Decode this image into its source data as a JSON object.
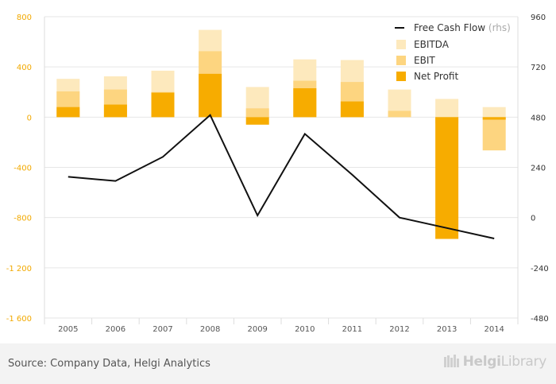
{
  "chart_data": {
    "type": "bar",
    "categories": [
      "2005",
      "2006",
      "2007",
      "2008",
      "2009",
      "2010",
      "2011",
      "2012",
      "2013",
      "2014"
    ],
    "series": [
      {
        "name": "EBITDA",
        "values": [
          305,
          325,
          370,
          695,
          240,
          460,
          455,
          220,
          145,
          80
        ],
        "color": "#fde9bd"
      },
      {
        "name": "EBIT",
        "values": [
          205,
          220,
          200,
          525,
          70,
          290,
          280,
          50,
          -50,
          -265
        ],
        "color": "#fdd580"
      },
      {
        "name": "Net Profit",
        "values": [
          80,
          100,
          195,
          345,
          -60,
          230,
          125,
          0,
          -970,
          -20
        ],
        "color": "#f7ac00"
      },
      {
        "name": "Free Cash Flow",
        "suffix": "(rhs)",
        "type": "line",
        "axis": "right",
        "color": "#111111",
        "values": [
          195,
          175,
          290,
          490,
          10,
          400,
          205,
          0,
          -50,
          -100
        ]
      }
    ],
    "y_left": {
      "ticks": [
        "800",
        "400",
        "0",
        "-400",
        "-800",
        "-1 200",
        "-1 600"
      ],
      "lim": [
        -1600,
        800
      ]
    },
    "y_right": {
      "ticks": [
        "960",
        "720",
        "480",
        "240",
        "0",
        "-240",
        "-480"
      ],
      "lim": [
        -480,
        960
      ]
    },
    "grid": true,
    "legend_position": "top-right"
  },
  "footer": {
    "source": "Source: Company Data, Helgi Analytics",
    "logo_part1": "Helgi",
    "logo_part2": "Library"
  },
  "colors": {
    "left_axis": "#f2a900",
    "grid": "#e6e6e6",
    "footer_bg": "#f3f3f3"
  }
}
